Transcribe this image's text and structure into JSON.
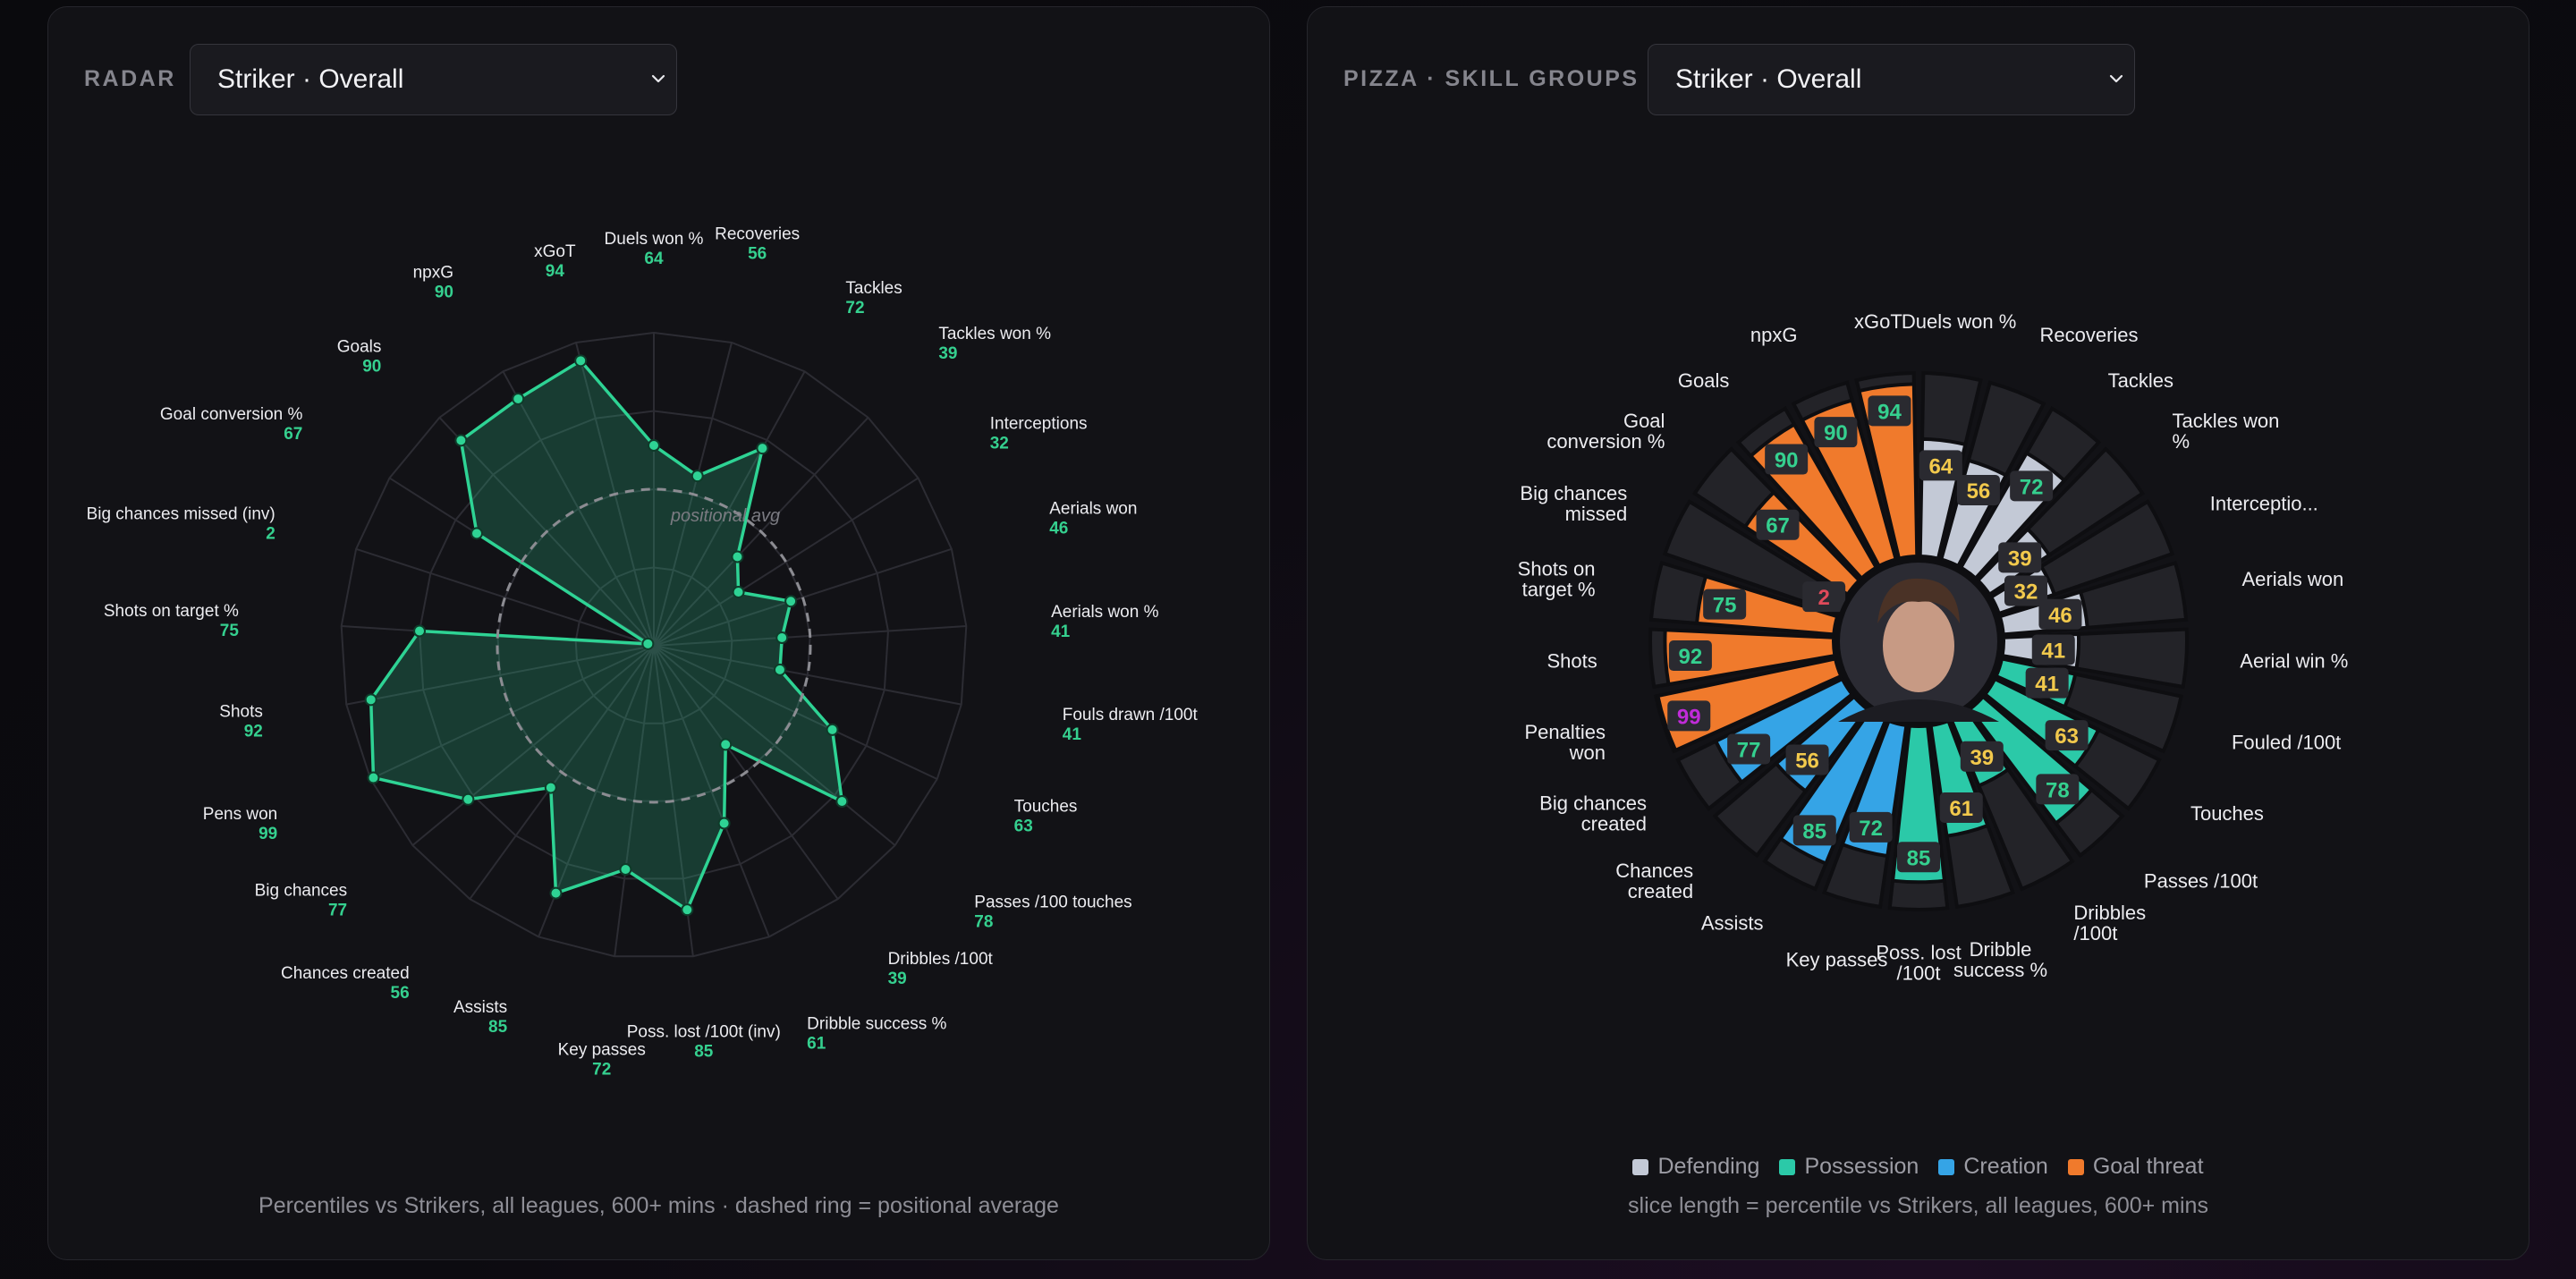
{
  "radar": {
    "title": "RADAR",
    "select_value": "Striker · Overall",
    "ring_label": "positional avg",
    "caption": "Percentiles vs Strikers, all leagues, 600+ mins · dashed ring = positional average"
  },
  "pizza": {
    "title": "PIZZA · SKILL GROUPS",
    "select_value": "Striker · Overall",
    "caption": "slice length = percentile vs Strikers, all leagues, 600+ mins",
    "legend": [
      {
        "label": "Defending",
        "color": "#c3c9d6"
      },
      {
        "label": "Possession",
        "color": "#2bc9a8"
      },
      {
        "label": "Creation",
        "color": "#35a4e6"
      },
      {
        "label": "Goal threat",
        "color": "#f07a2c"
      }
    ],
    "player_photo": "player-headshot"
  },
  "colors": {
    "accent": "#2ed394",
    "value_high": "#35d08f",
    "value_mid": "#f2c94c",
    "value_low": "#e04a5a",
    "value_elite": "#c02bd8"
  },
  "chart_data": [
    {
      "type": "radar",
      "title": "",
      "categories": [
        "Duels won %",
        "Recoveries",
        "Tackles",
        "Tackles won %",
        "Interceptions",
        "Aerials won",
        "Aerials won %",
        "Fouls drawn /100t",
        "Touches",
        "Passes /100 touches",
        "Dribbles /100t",
        "Dribble success %",
        "Poss. lost /100t (inv)",
        "Key passes",
        "Assists",
        "Chances created",
        "Big chances",
        "Pens won",
        "Shots",
        "Shots on target %",
        "Big chances missed (inv)",
        "Goal conversion %",
        "Goals",
        "npxG",
        "xGoT"
      ],
      "values": [
        64,
        56,
        72,
        39,
        32,
        46,
        41,
        41,
        63,
        78,
        39,
        61,
        85,
        72,
        85,
        56,
        77,
        99,
        92,
        75,
        2,
        67,
        90,
        90,
        94
      ],
      "reference_ring": 50,
      "rlim": [
        0,
        100
      ],
      "grid": true
    },
    {
      "type": "pizza",
      "title": "",
      "categories": [
        "Duels won %",
        "Recoveries",
        "Tackles",
        "Tackles won %",
        "Interceptions",
        "Aerials won",
        "Aerial win %",
        "Fouled /100t",
        "Touches",
        "Passes /100t",
        "Dribbles /100t",
        "Dribble success %",
        "Poss. lost /100t",
        "Key passes",
        "Assists",
        "Chances created",
        "Big chances created",
        "Penalties won",
        "Shots",
        "Shots on target %",
        "Big chances missed",
        "Goal conversion %",
        "Goals",
        "npxG",
        "xGoT"
      ],
      "values": [
        64,
        56,
        72,
        39,
        32,
        46,
        41,
        41,
        63,
        78,
        39,
        61,
        85,
        72,
        85,
        56,
        77,
        99,
        92,
        75,
        2,
        67,
        90,
        90,
        94
      ],
      "groups": [
        "Defending",
        "Defending",
        "Defending",
        "Defending",
        "Defending",
        "Defending",
        "Defending",
        "Possession",
        "Possession",
        "Possession",
        "Possession",
        "Possession",
        "Possession",
        "Creation",
        "Creation",
        "Creation",
        "Creation",
        "Goal threat",
        "Goal threat",
        "Goal threat",
        "Goal threat",
        "Goal threat",
        "Goal threat",
        "Goal threat",
        "Goal threat"
      ],
      "rlim": [
        0,
        100
      ]
    }
  ]
}
